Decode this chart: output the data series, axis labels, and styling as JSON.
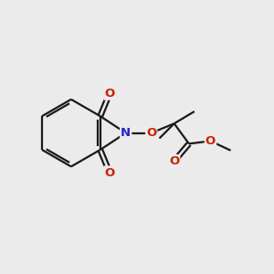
{
  "bg_color": "#ebebeb",
  "bond_color": "#1a1a1a",
  "N_color": "#2222cc",
  "O_color": "#cc2200",
  "line_width": 1.6,
  "fig_size": [
    3.0,
    3.0
  ],
  "dpi": 100,
  "xlim": [
    0,
    10
  ],
  "ylim": [
    0,
    10
  ]
}
